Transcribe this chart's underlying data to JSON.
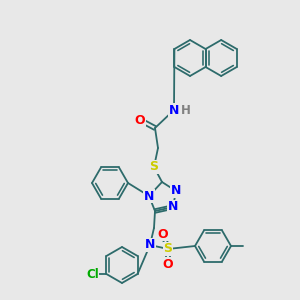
{
  "bg_color": "#e8e8e8",
  "atom_colors": {
    "N": "#0000ff",
    "O": "#ff0000",
    "S": "#cccc00",
    "Cl": "#00aa00",
    "C": "#2d6b6b",
    "H": "#808080"
  },
  "bond_color": "#2d6b6b",
  "bond_lw": 1.3,
  "ring_r": 18,
  "naph_r": 18
}
